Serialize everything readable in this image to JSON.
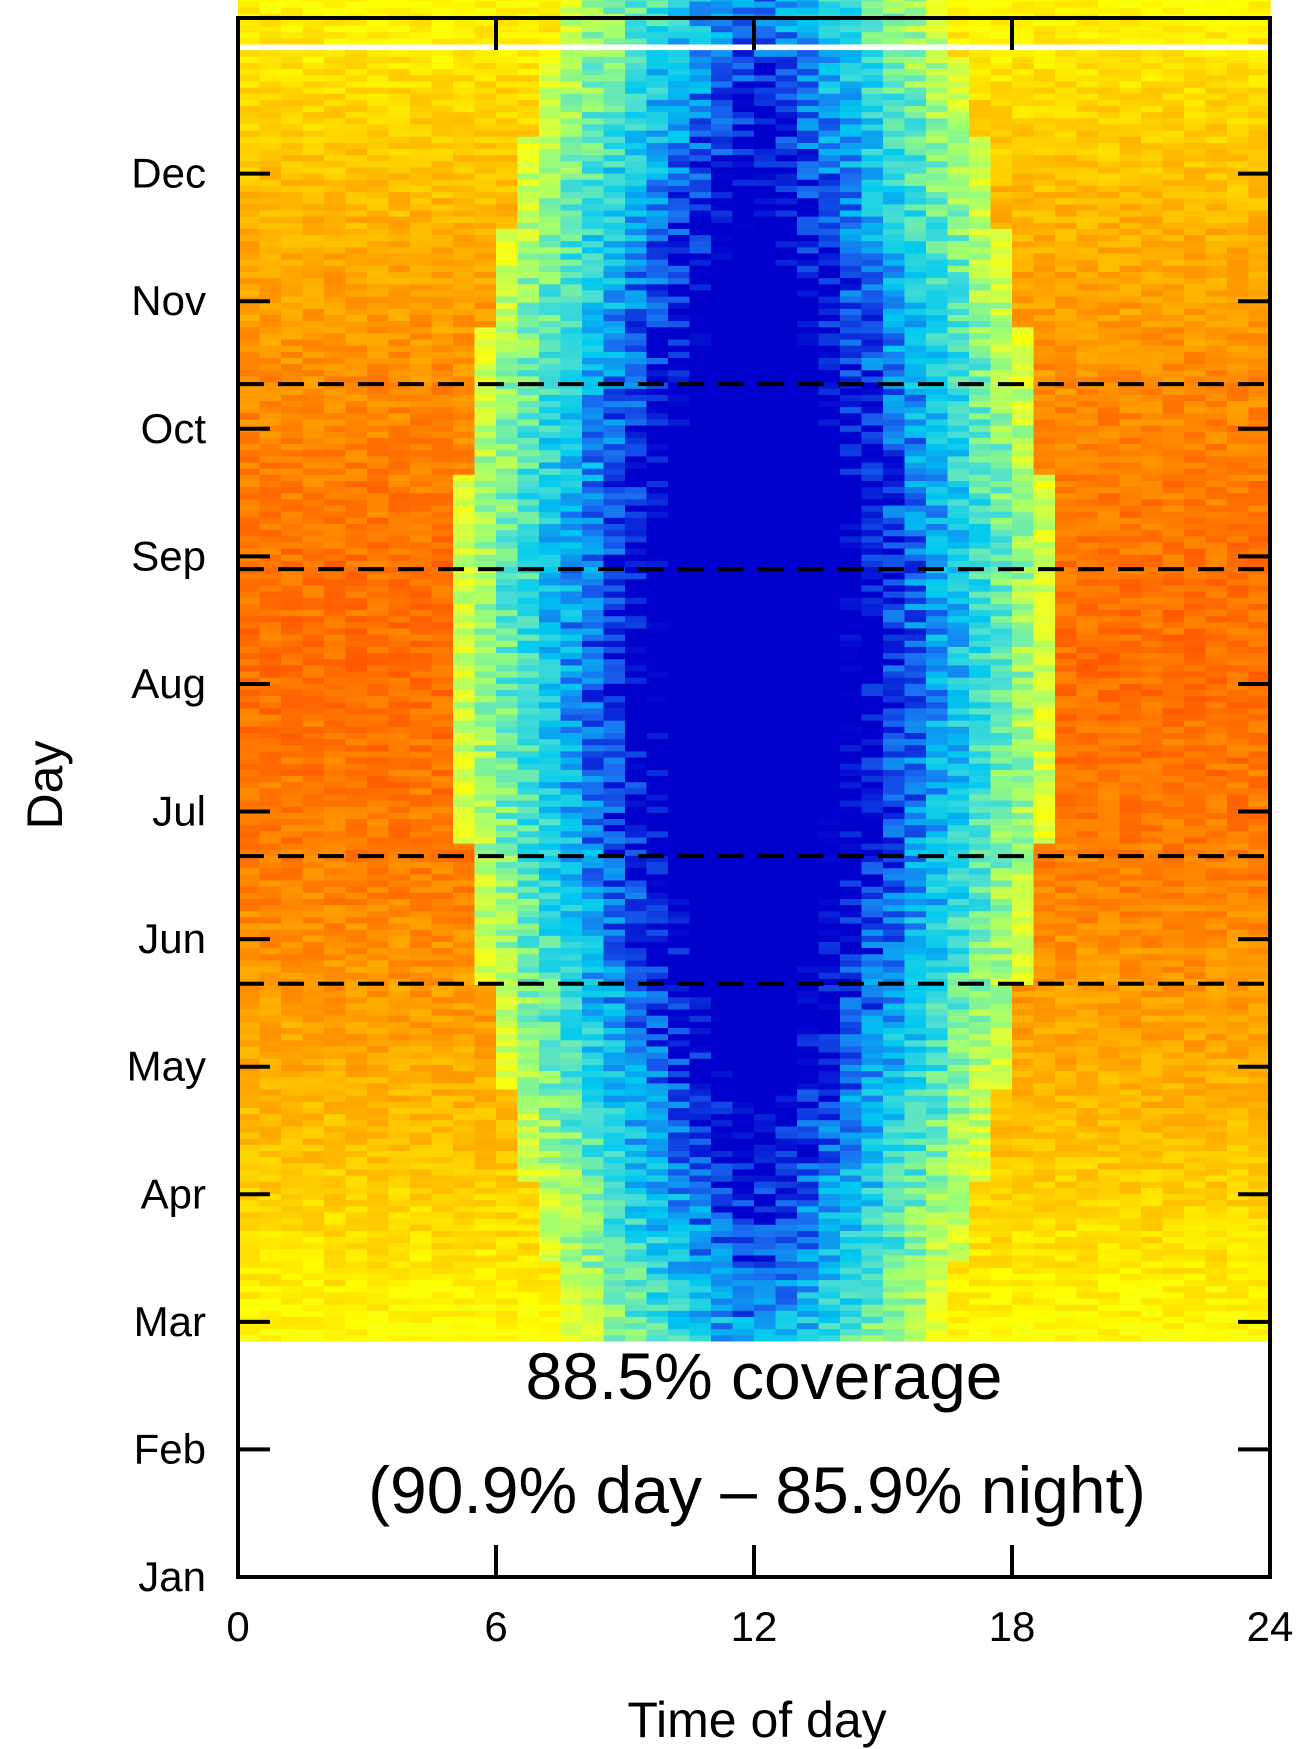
{
  "chart_data": {
    "type": "heatmap",
    "title": "",
    "xlabel": "Time of day",
    "ylabel": "Day",
    "x_ticks": [
      "0",
      "6",
      "12",
      "18",
      "24"
    ],
    "y_ticks": [
      "Jan",
      "Feb",
      "Mar",
      "Apr",
      "May",
      "Jun",
      "Jul",
      "Aug",
      "Sep",
      "Oct",
      "Nov",
      "Dec"
    ],
    "xlim": [
      0,
      24
    ],
    "ylim_months": [
      0,
      12
    ],
    "data_start_month": 1.85,
    "data_end_month": 12.45,
    "gap_month": 12.0,
    "color_scale": [
      "#0000cc",
      "#1a6cf0",
      "#00c8f0",
      "#50e0d0",
      "#a0ff70",
      "#e8ff30",
      "#ffff00",
      "#ffd000",
      "#ffa000",
      "#ff7000",
      "#ff4000"
    ],
    "dashed_lines_months": [
      4.65,
      5.65,
      7.9,
      9.35
    ],
    "grid": false,
    "legend": "none",
    "annotations": [
      "88.5% coverage",
      "(90.9% day – 85.9% night)"
    ],
    "stats": {
      "coverage": "88.5%",
      "day": "90.9%",
      "night": "85.9%"
    }
  }
}
